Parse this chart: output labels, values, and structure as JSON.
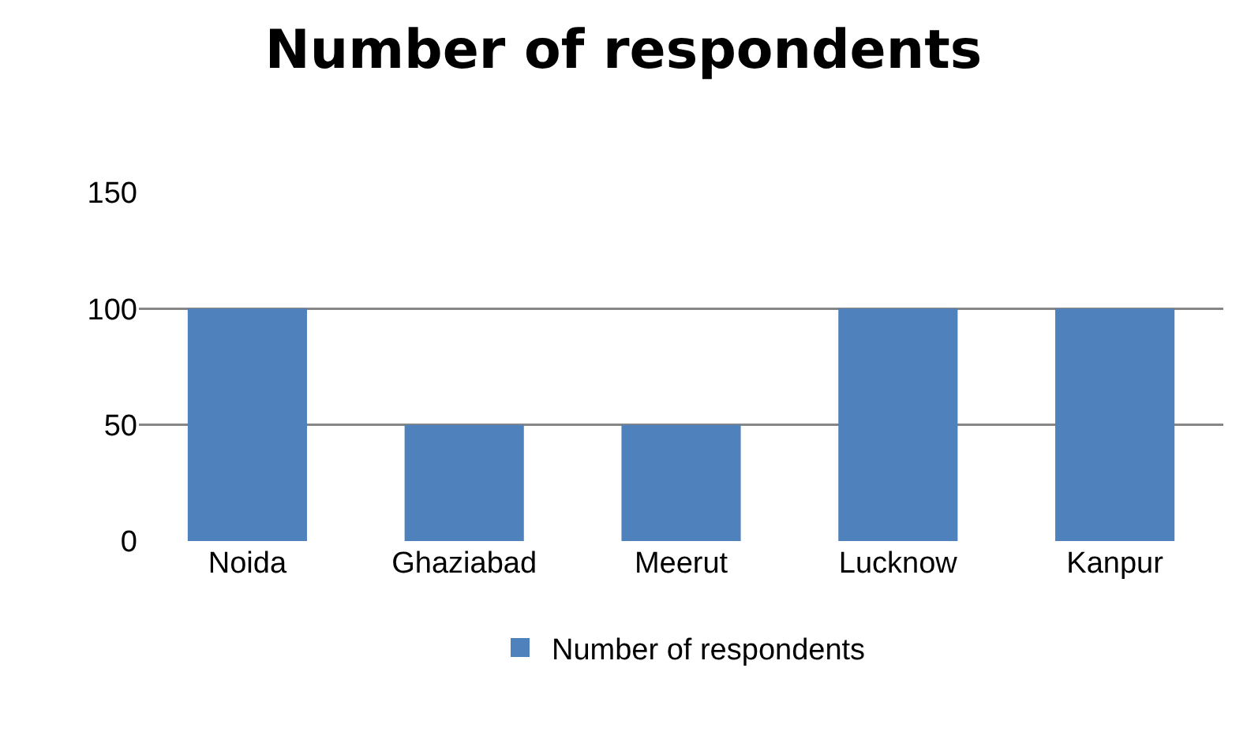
{
  "chart_data": {
    "type": "bar",
    "title": "Number of respondents",
    "categories": [
      "Noida",
      "Ghaziabad",
      "Meerut",
      "Lucknow",
      "Kanpur"
    ],
    "series": [
      {
        "name": "Number of respondents",
        "color": "#4f81bd",
        "values": [
          100,
          50,
          50,
          100,
          100
        ]
      }
    ],
    "ylim": [
      0,
      150
    ],
    "yticks": [
      0,
      50,
      100,
      150
    ],
    "grid": "y",
    "legend": "bottom"
  }
}
